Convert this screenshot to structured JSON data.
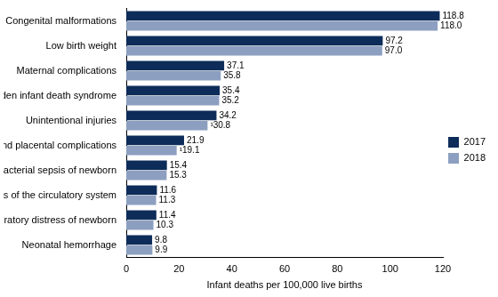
{
  "chart_data": {
    "type": "bar",
    "orientation": "horizontal",
    "categories": [
      "Congenital malformations",
      "Low birth weight",
      "Maternal complications",
      "Sudden infant death syndrome",
      "Unintentional injuries",
      "Cord and placental complications",
      "Bacterial sepsis of newborn",
      "Diseases of the circulatory system",
      "Respiratory distress of newborn",
      "Neonatal hemorrhage"
    ],
    "series": [
      {
        "name": "2017",
        "color": "#0d2c59",
        "values": [
          118.8,
          97.2,
          37.1,
          35.4,
          34.2,
          21.9,
          15.4,
          11.6,
          11.4,
          9.8
        ]
      },
      {
        "name": "2018",
        "color": "#8c9fc0",
        "values": [
          118.0,
          97.0,
          35.8,
          35.2,
          30.8,
          19.1,
          15.3,
          11.3,
          10.3,
          9.9
        ],
        "value_labels": [
          "118.0",
          "97.0",
          "35.8",
          "35.2",
          "¹30.8",
          "¹19.1",
          "15.3",
          "11.3",
          "10.3",
          "9.9"
        ]
      }
    ],
    "xlabel": "Infant deaths per 100,000 live births",
    "xlim": [
      0,
      120
    ],
    "xticks": [
      0,
      20,
      40,
      60,
      80,
      100,
      120
    ],
    "grid": false,
    "legend": "right",
    "data_labels": true
  }
}
